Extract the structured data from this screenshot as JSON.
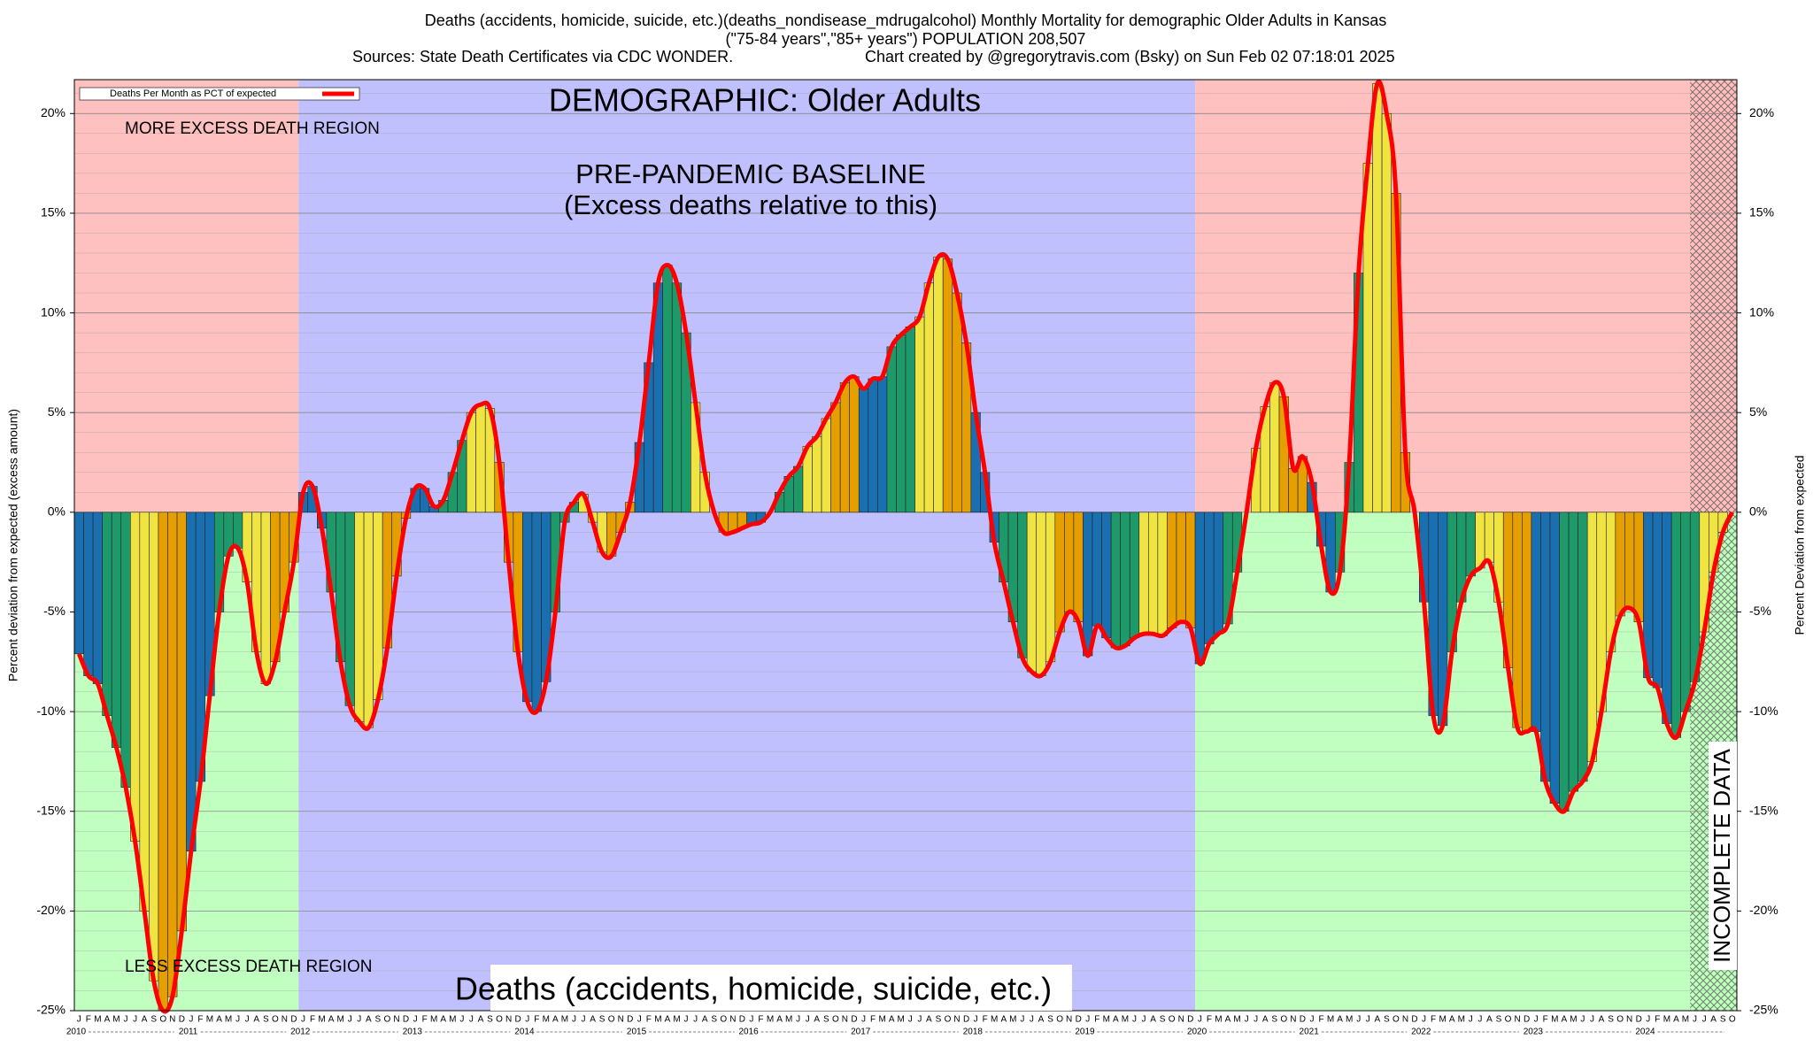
{
  "chart_data": {
    "type": "bar",
    "title": "Deaths (accidents, homicide, suicide, etc.)(deaths_nondisease_mdrugalcohol) Monthly Mortality for demographic Older Adults in Kansas",
    "subtitle": "(\"75-84 years\",\"85+ years\") POPULATION 208,507",
    "source": "Sources: State Death Certificates via CDC WONDER.",
    "credit": "Chart created by @gregorytravis.com (Bsky) on Sun Feb 02 07:18:01 2025",
    "ylabel": "Percent deviation from expected (excess amount)",
    "y2label": "Percent Deviation from expected",
    "annotations": {
      "demographic": "DEMOGRAPHIC: Older Adults",
      "more": "MORE EXCESS DEATH REGION",
      "less": "LESS EXCESS DEATH REGION",
      "baseline": "PRE-PANDEMIC BASELINE",
      "baseline_note": "(Excess deaths relative to this)",
      "cause": "Deaths (accidents, homicide, suicide, etc.)",
      "incomplete": "INCOMPLETE DATA"
    },
    "legend": {
      "label": "Deaths Per Month as PCT of expected",
      "color": "#ff0000",
      "position": "upper left"
    },
    "quarter_colors": [
      "#1a6fb0",
      "#1e9a6a",
      "#f0e442",
      "#e69f00"
    ],
    "years": [
      "2010",
      "2011",
      "2012",
      "2013",
      "2014",
      "2015",
      "2016",
      "2017",
      "2018",
      "2019",
      "2020",
      "2021",
      "2022",
      "2023",
      "2024"
    ],
    "categories": [
      "J",
      "F",
      "M",
      "A",
      "M",
      "J",
      "J",
      "A",
      "S",
      "O",
      "N",
      "D",
      "J",
      "F",
      "M",
      "A",
      "M",
      "J",
      "J",
      "A",
      "S",
      "O",
      "N",
      "D",
      "J",
      "F",
      "M",
      "A",
      "M",
      "J",
      "J",
      "A",
      "S",
      "O",
      "N",
      "D",
      "J",
      "F",
      "M",
      "A",
      "M",
      "J",
      "J",
      "A",
      "S",
      "O",
      "N",
      "D",
      "J",
      "F",
      "M",
      "A",
      "M",
      "J",
      "J",
      "A",
      "S",
      "O",
      "N",
      "D",
      "J",
      "F",
      "M",
      "A",
      "M",
      "J",
      "J",
      "A",
      "S",
      "O",
      "N",
      "D",
      "J",
      "F",
      "M",
      "A",
      "M",
      "J",
      "J",
      "A",
      "S",
      "O",
      "N",
      "D",
      "J",
      "F",
      "M",
      "A",
      "M",
      "J",
      "J",
      "A",
      "S",
      "O",
      "N",
      "D",
      "J",
      "F",
      "M",
      "A",
      "M",
      "J",
      "J",
      "A",
      "S",
      "O",
      "N",
      "D",
      "J",
      "F",
      "M",
      "A",
      "M",
      "J",
      "J",
      "A",
      "S",
      "O",
      "N",
      "D",
      "J",
      "F",
      "M",
      "A",
      "M",
      "J",
      "J",
      "A",
      "S",
      "O",
      "N",
      "D",
      "J",
      "F",
      "M",
      "A",
      "M",
      "J",
      "J",
      "A",
      "S",
      "O",
      "N",
      "D",
      "J",
      "F",
      "M",
      "A",
      "M",
      "J",
      "J",
      "A",
      "S",
      "O",
      "N",
      "D",
      "J",
      "F",
      "M",
      "A",
      "M",
      "J",
      "J",
      "A",
      "S",
      "O",
      "N",
      "D",
      "J",
      "F",
      "M",
      "A",
      "M",
      "J",
      "J",
      "A",
      "S",
      "O"
    ],
    "values": [
      -7.1,
      -8.2,
      -8.6,
      -10.2,
      -11.8,
      -13.8,
      -16.5,
      -20,
      -23.5,
      -25,
      -24.3,
      -21,
      -17,
      -13.5,
      -9.2,
      -5,
      -2.2,
      -1.8,
      -3.5,
      -7,
      -8.6,
      -7.5,
      -5,
      -2.5,
      1.0,
      1.3,
      -0.8,
      -4,
      -7.5,
      -9.7,
      -10.5,
      -10.8,
      -9.4,
      -6.8,
      -3.2,
      -0.3,
      1.2,
      1.2,
      0.3,
      0.6,
      2,
      3.6,
      5,
      5.4,
      5.2,
      2.5,
      -2.5,
      -7,
      -9.5,
      -10,
      -8.5,
      -5,
      -0.5,
      0.5,
      0.9,
      -0.5,
      -2,
      -2.2,
      -1,
      0.5,
      3.5,
      7.5,
      11.5,
      12.4,
      11.5,
      9,
      5.5,
      2,
      0,
      -1,
      -1,
      -0.8,
      -0.6,
      -0.5,
      0,
      1,
      1.8,
      2.3,
      3.3,
      3.8,
      4.7,
      5.5,
      6.5,
      6.8,
      6.2,
      6.7,
      6.8,
      8.3,
      8.9,
      9.3,
      9.8,
      11.5,
      12.8,
      12.7,
      11,
      8.5,
      5,
      2,
      -1.5,
      -3.5,
      -5.5,
      -7.3,
      -8,
      -8.2,
      -7.5,
      -6,
      -5,
      -5.5,
      -7.2,
      -5.7,
      -6.3,
      -6.8,
      -6.7,
      -6.3,
      -6.1,
      -6.1,
      -6.2,
      -5.8,
      -5.5,
      -5.8,
      -7.6,
      -6.6,
      -6.1,
      -5.6,
      -3,
      0,
      3.2,
      5.3,
      6.5,
      5.8,
      2.2,
      2.8,
      1.5,
      -1.7,
      -4,
      -3,
      2.5,
      12,
      17.5,
      21.5,
      20,
      16,
      3,
      0,
      -4.5,
      -10.2,
      -10.7,
      -7,
      -4.5,
      -3.2,
      -2.8,
      -2.5,
      -4.5,
      -7.8,
      -10.8,
      -11,
      -11,
      -13.5,
      -14.6,
      -15,
      -14,
      -13.5,
      -12.5,
      -10,
      -7,
      -5.2,
      -4.8,
      -5.5,
      -8.3,
      -8.8,
      -10.6,
      -11.3,
      -10,
      -8.5,
      -6,
      -3,
      -1,
      0
    ],
    "ylim": [
      -25,
      21.7
    ],
    "yticks": [
      {
        "value": -25,
        "label": "-25%"
      },
      {
        "value": -20,
        "label": "-20%"
      },
      {
        "value": -15,
        "label": "-15%"
      },
      {
        "value": -10,
        "label": "-10%"
      },
      {
        "value": -5,
        "label": "-5%"
      },
      {
        "value": 0,
        "label": "0%"
      },
      {
        "value": 5,
        "label": "5%"
      },
      {
        "value": 10,
        "label": "10%"
      },
      {
        "value": 15,
        "label": "15%"
      },
      {
        "value": 20,
        "label": "20%"
      }
    ],
    "grid": true
  }
}
